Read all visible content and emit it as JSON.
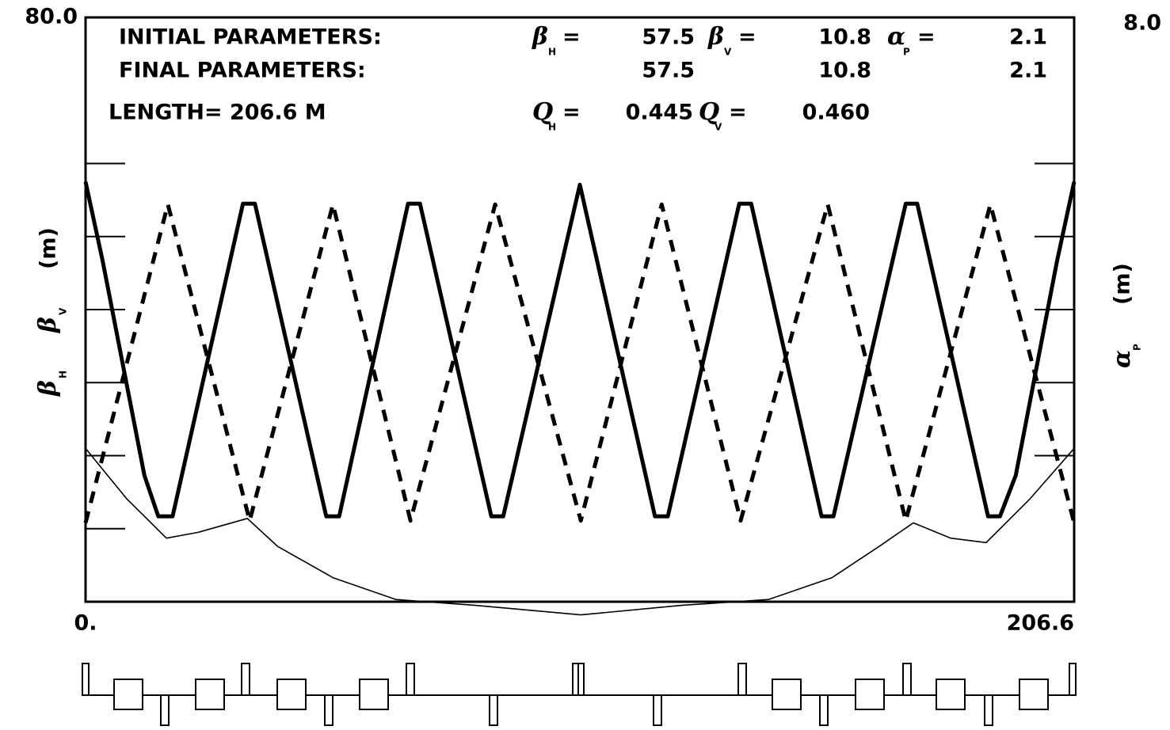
{
  "chart_data": {
    "type": "line",
    "header": {
      "initial_label": "INITIAL PARAMETERS:",
      "final_label": "FINAL PARAMETERS:",
      "length": "LENGTH= 206.6 M",
      "params": [
        {
          "symbol": "β",
          "sub": "H",
          "eq": "=",
          "initial": "57.5",
          "final": "57.5"
        },
        {
          "symbol": "β",
          "sub": "V",
          "eq": "=",
          "initial": "10.8",
          "final": "10.8"
        },
        {
          "symbol": "α",
          "sub": "P",
          "eq": "=",
          "initial": "2.1",
          "final": "2.1"
        }
      ],
      "tunes": [
        {
          "symbol": "Q",
          "sub": "H",
          "eq": "=",
          "value": "0.445"
        },
        {
          "symbol": "Q",
          "sub": "V",
          "eq": "=",
          "value": "0.460"
        }
      ]
    },
    "ylabel": {
      "parts": [
        {
          "symbol": "β",
          "sub": "H"
        },
        {
          "symbol": "β",
          "sub": "V"
        }
      ],
      "unit": "(m)"
    },
    "y2label": {
      "parts": [
        {
          "symbol": "α",
          "sub": "P"
        }
      ],
      "unit": "(m)"
    },
    "xlim": [
      0,
      206.6
    ],
    "xticks": [
      {
        "value": 0,
        "label": "0."
      },
      {
        "value": 206.6,
        "label": "206.6"
      }
    ],
    "ylim": [
      0,
      80
    ],
    "yticks": [
      {
        "value": 80,
        "label": "80.0"
      }
    ],
    "minor_yticks": [
      10,
      20,
      30,
      40,
      50,
      60
    ],
    "y2lim": [
      0,
      8
    ],
    "y2ticks": [
      {
        "value": 8,
        "label": "8.0"
      }
    ],
    "minor_y2ticks": [
      2,
      3,
      4,
      5,
      6
    ],
    "series": [
      {
        "name": "βH",
        "color": "#000000",
        "linestyle": "solid",
        "x": [
          0,
          3.6,
          12.3,
          15.2,
          18.2,
          32.9,
          35.4,
          50.3,
          53.0,
          67.4,
          69.9,
          84.8,
          87.3,
          103.3,
          119.0,
          121.7,
          136.6,
          139.1,
          153.8,
          156.3,
          171.4,
          173.8,
          188.6,
          191.1,
          194.4,
          203.0,
          206.6
        ],
        "values": [
          57.5,
          46.6,
          17.3,
          11.7,
          11.7,
          54.5,
          54.5,
          11.7,
          11.7,
          54.5,
          54.5,
          11.7,
          11.7,
          57.1,
          11.7,
          11.7,
          54.5,
          54.5,
          11.7,
          11.7,
          54.5,
          54.5,
          11.7,
          11.7,
          17.3,
          46.6,
          57.5
        ]
      },
      {
        "name": "βV",
        "color": "#000000",
        "linestyle": "dashed",
        "x": [
          0,
          17.2,
          34.3,
          51.7,
          67.9,
          85.6,
          103.5,
          120.4,
          136.9,
          155.1,
          171.4,
          189.1,
          206.6
        ],
        "values": [
          10.8,
          54.4,
          11.1,
          54.4,
          11.1,
          54.4,
          11.1,
          54.4,
          11.1,
          54.4,
          11.1,
          54.4,
          10.8
        ]
      },
      {
        "name": "αP",
        "color": "#000000",
        "linestyle": "thin",
        "axis": "y2",
        "x": [
          0,
          8.6,
          16.9,
          23.5,
          33.8,
          40.1,
          51.7,
          64.9,
          81.5,
          103.5,
          124.5,
          142.7,
          156.0,
          165.9,
          173.0,
          180.8,
          188.2,
          197.4,
          206.6
        ],
        "values": [
          2.1,
          1.41,
          0.87,
          0.95,
          1.14,
          0.76,
          0.33,
          0.03,
          -0.05,
          -0.18,
          -0.05,
          0.03,
          0.33,
          0.76,
          1.08,
          0.87,
          0.81,
          1.41,
          2.1
        ]
      }
    ]
  }
}
